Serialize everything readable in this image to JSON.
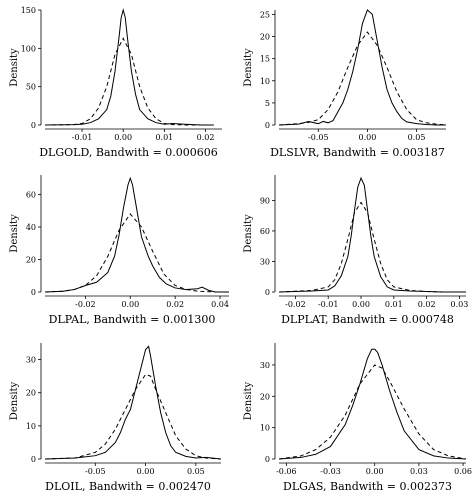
{
  "chart_data": [
    {
      "type": "line",
      "xlabel": "DLGOLD, Bandwith = 0.000606",
      "ylabel": "Density",
      "xlim": [
        -0.019,
        0.024
      ],
      "ylim": [
        0,
        150
      ],
      "xticks": [
        -0.01,
        0.0,
        0.01,
        0.02
      ],
      "xtick_labels": [
        "-0.01",
        "0.00",
        "0.01",
        "0.02"
      ],
      "yticks": [
        0,
        50,
        100,
        150
      ],
      "series": [
        {
          "style": "solid",
          "x": [
            -0.019,
            -0.012,
            -0.01,
            -0.008,
            -0.006,
            -0.004,
            -0.003,
            -0.002,
            -0.001,
            -0.0005,
            0,
            0.0005,
            0.001,
            0.002,
            0.003,
            0.004,
            0.006,
            0.008,
            0.01,
            0.012,
            0.015,
            0.019,
            0.022
          ],
          "y": [
            0,
            0.5,
            1,
            3,
            8,
            20,
            38,
            70,
            115,
            140,
            150,
            140,
            115,
            70,
            40,
            20,
            8,
            3,
            1,
            2,
            1,
            0,
            0
          ]
        },
        {
          "style": "dashed",
          "x": [
            -0.019,
            -0.012,
            -0.01,
            -0.008,
            -0.006,
            -0.004,
            -0.002,
            0,
            0.002,
            0.004,
            0.006,
            0.008,
            0.01,
            0.012,
            0.015,
            0.019,
            0.022
          ],
          "y": [
            0,
            0.5,
            2,
            8,
            22,
            50,
            92,
            113,
            92,
            50,
            22,
            8,
            2,
            0.5,
            0,
            0,
            0
          ]
        }
      ]
    },
    {
      "type": "line",
      "xlabel": "DLSLVR, Bandwith = 0.003187",
      "ylabel": "Density",
      "xlim": [
        -0.09,
        0.08
      ],
      "ylim": [
        0,
        26
      ],
      "xticks": [
        -0.05,
        0.0,
        0.05
      ],
      "xtick_labels": [
        "-0.05",
        "0.00",
        "0.05"
      ],
      "yticks": [
        0,
        5,
        10,
        15,
        20,
        25
      ],
      "series": [
        {
          "style": "solid",
          "x": [
            -0.09,
            -0.07,
            -0.06,
            -0.05,
            -0.045,
            -0.04,
            -0.035,
            -0.03,
            -0.025,
            -0.02,
            -0.015,
            -0.01,
            -0.005,
            0,
            0.005,
            0.01,
            0.015,
            0.02,
            0.025,
            0.03,
            0.035,
            0.04,
            0.05,
            0.06,
            0.07,
            0.08
          ],
          "y": [
            0,
            0.2,
            0.8,
            0.3,
            0.8,
            0.5,
            1,
            3,
            5,
            8,
            12,
            17,
            23,
            26,
            25,
            19,
            13,
            8,
            5,
            3,
            1.5,
            0.7,
            0.3,
            0.1,
            0,
            0
          ]
        },
        {
          "style": "dashed",
          "x": [
            -0.09,
            -0.07,
            -0.06,
            -0.05,
            -0.04,
            -0.03,
            -0.02,
            -0.01,
            0,
            0.01,
            0.02,
            0.03,
            0.04,
            0.05,
            0.06,
            0.07,
            0.08
          ],
          "y": [
            0,
            0.3,
            0.6,
            1.2,
            3.5,
            7.5,
            13,
            18,
            21,
            18,
            13,
            7.5,
            3.5,
            1.2,
            0.5,
            0.2,
            0
          ]
        }
      ]
    },
    {
      "type": "line",
      "xlabel": "DLPAL, Bandwith = 0.001300",
      "ylabel": "Density",
      "xlim": [
        -0.038,
        0.044
      ],
      "ylim": [
        0,
        72
      ],
      "xticks": [
        -0.02,
        0.0,
        0.02,
        0.04
      ],
      "xtick_labels": [
        "-0.02",
        "0.00",
        "0.02",
        "0.04"
      ],
      "yticks": [
        0,
        20,
        40,
        60
      ],
      "series": [
        {
          "style": "solid",
          "x": [
            -0.038,
            -0.03,
            -0.025,
            -0.02,
            -0.015,
            -0.01,
            -0.007,
            -0.005,
            -0.003,
            -0.001,
            0,
            0.001,
            0.003,
            0.005,
            0.008,
            0.01,
            0.013,
            0.016,
            0.02,
            0.025,
            0.03,
            0.032,
            0.035,
            0.038,
            0.044
          ],
          "y": [
            0,
            0.5,
            1.5,
            4,
            6,
            12,
            22,
            35,
            52,
            66,
            70,
            66,
            50,
            34,
            22,
            16,
            9,
            5,
            2.5,
            1.5,
            2,
            3,
            1,
            0,
            0
          ]
        },
        {
          "style": "dashed",
          "x": [
            -0.038,
            -0.03,
            -0.025,
            -0.02,
            -0.015,
            -0.01,
            -0.005,
            0,
            0.005,
            0.01,
            0.015,
            0.02,
            0.025,
            0.03,
            0.038,
            0.044
          ],
          "y": [
            0,
            0.5,
            1.5,
            4,
            10,
            22,
            38,
            48,
            40,
            25,
            11,
            4,
            1.5,
            0.5,
            0,
            0
          ]
        }
      ]
    },
    {
      "type": "line",
      "xlabel": "DLPLAT, Bandwith = 0.000748",
      "ylabel": "Density",
      "xlim": [
        -0.025,
        0.032
      ],
      "ylim": [
        0,
        115
      ],
      "xticks": [
        -0.02,
        -0.01,
        0.0,
        0.01,
        0.02,
        0.03
      ],
      "xtick_labels": [
        "-0.02",
        "-0.01",
        "0.00",
        "0.01",
        "0.02",
        "0.03"
      ],
      "yticks": [
        0,
        30,
        60,
        90
      ],
      "series": [
        {
          "style": "solid",
          "x": [
            -0.025,
            -0.015,
            -0.01,
            -0.008,
            -0.006,
            -0.004,
            -0.003,
            -0.002,
            -0.001,
            0,
            0.001,
            0.002,
            0.003,
            0.004,
            0.006,
            0.008,
            0.01,
            0.015,
            0.02,
            0.025,
            0.032
          ],
          "y": [
            0,
            1,
            2,
            6,
            16,
            35,
            55,
            80,
            103,
            112,
            105,
            80,
            55,
            35,
            15,
            5,
            2,
            1,
            0.5,
            0,
            0
          ]
        },
        {
          "style": "dashed",
          "x": [
            -0.025,
            -0.015,
            -0.01,
            -0.008,
            -0.006,
            -0.004,
            -0.002,
            0,
            0.002,
            0.004,
            0.006,
            0.008,
            0.01,
            0.015,
            0.02,
            0.025,
            0.032
          ],
          "y": [
            0,
            1.5,
            5,
            12,
            28,
            52,
            78,
            88,
            78,
            52,
            28,
            12,
            5,
            1.5,
            0.5,
            0,
            0
          ]
        }
      ]
    },
    {
      "type": "line",
      "xlabel": "DLOIL, Bandwith = 0.002470",
      "ylabel": "Density",
      "xlim": [
        -0.1,
        0.075
      ],
      "ylim": [
        0,
        35
      ],
      "xticks": [
        -0.05,
        0.0,
        0.05
      ],
      "xtick_labels": [
        "-0.05",
        "0.00",
        "0.05"
      ],
      "yticks": [
        0,
        10,
        20,
        30
      ],
      "series": [
        {
          "style": "solid",
          "x": [
            -0.1,
            -0.07,
            -0.05,
            -0.04,
            -0.03,
            -0.025,
            -0.02,
            -0.015,
            -0.01,
            -0.005,
            0,
            0.003,
            0.005,
            0.01,
            0.015,
            0.02,
            0.025,
            0.03,
            0.04,
            0.05,
            0.06,
            0.075
          ],
          "y": [
            0,
            0.3,
            1,
            2,
            5,
            8,
            12,
            15,
            21,
            27,
            33,
            34,
            31,
            22,
            14,
            8,
            4,
            2,
            0.8,
            0.3,
            0.5,
            0
          ]
        },
        {
          "style": "dashed",
          "x": [
            -0.1,
            -0.07,
            -0.05,
            -0.04,
            -0.03,
            -0.02,
            -0.01,
            0,
            0.005,
            0.01,
            0.02,
            0.03,
            0.04,
            0.05,
            0.06,
            0.075
          ],
          "y": [
            0,
            0.3,
            2,
            4.5,
            9,
            15,
            21,
            25.5,
            25,
            21,
            14,
            7,
            3,
            1,
            0.3,
            0
          ]
        }
      ]
    },
    {
      "type": "line",
      "xlabel": "DLGAS, Bandwith = 0.002373",
      "ylabel": "Density",
      "xlim": [
        -0.065,
        0.062
      ],
      "ylim": [
        0,
        37
      ],
      "xticks": [
        -0.06,
        -0.03,
        0.0,
        0.03,
        0.06
      ],
      "xtick_labels": [
        "-0.06",
        "-0.03",
        "0.00",
        "0.03",
        "0.06"
      ],
      "yticks": [
        0,
        10,
        20,
        30
      ],
      "series": [
        {
          "style": "solid",
          "x": [
            -0.065,
            -0.05,
            -0.04,
            -0.03,
            -0.02,
            -0.015,
            -0.01,
            -0.005,
            -0.002,
            0,
            0.002,
            0.005,
            0.01,
            0.015,
            0.02,
            0.03,
            0.04,
            0.05,
            0.062
          ],
          "y": [
            0,
            0.5,
            1.5,
            4,
            11,
            17,
            24,
            32,
            35,
            35,
            34,
            30,
            22,
            15,
            9,
            3,
            1,
            0.3,
            0
          ]
        },
        {
          "style": "dashed",
          "x": [
            -0.065,
            -0.05,
            -0.04,
            -0.03,
            -0.02,
            -0.01,
            0,
            0.005,
            0.01,
            0.02,
            0.03,
            0.04,
            0.05,
            0.062
          ],
          "y": [
            0,
            1,
            3,
            7,
            14,
            24,
            30,
            29,
            25,
            16,
            8,
            3,
            1,
            0
          ]
        }
      ]
    }
  ]
}
